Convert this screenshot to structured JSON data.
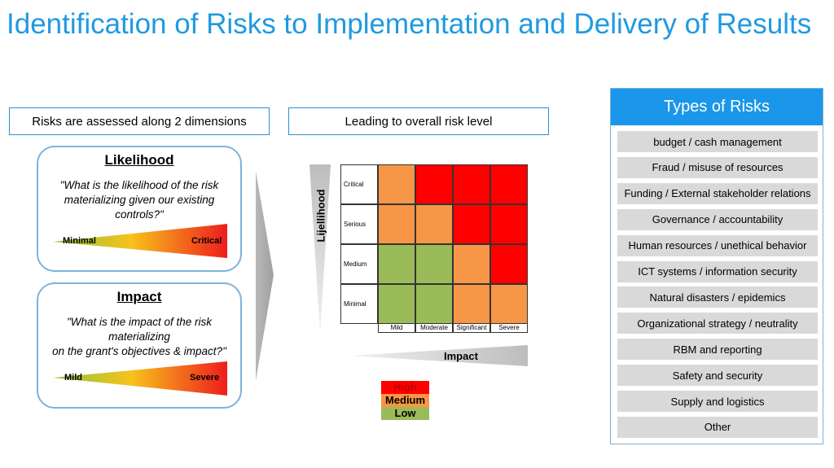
{
  "title": "Identification of Risks to Implementation and Delivery of Results",
  "headers": {
    "left": "Risks are assessed along 2 dimensions",
    "middle": "Leading to overall risk level"
  },
  "likelihood_card": {
    "title": "Likelihood",
    "question_lines": [
      "\"What is the likelihood of the risk",
      "materializing given our existing",
      "controls?\""
    ],
    "low_label": "Minimal",
    "high_label": "Critical"
  },
  "impact_card": {
    "title": "Impact",
    "question_lines": [
      "\"What is the impact of the risk",
      "materializing",
      "on the grant's objectives & impact?\""
    ],
    "low_label": "Mild",
    "high_label": "Severe"
  },
  "matrix": {
    "likelihood_label": "Lijellihood",
    "impact_label": "Impact",
    "rows": [
      "Critical",
      "Serious",
      "Medium",
      "Minimal"
    ],
    "columns": [
      "Mild",
      "Moderate",
      "Significant",
      "Severe"
    ],
    "levels": [
      [
        "medium",
        "high",
        "high",
        "high"
      ],
      [
        "medium",
        "medium",
        "high",
        "high"
      ],
      [
        "low",
        "low",
        "medium",
        "high"
      ],
      [
        "low",
        "low",
        "medium",
        "medium"
      ]
    ]
  },
  "legend": [
    {
      "key": "high",
      "label": "High",
      "color": "#ff0000"
    },
    {
      "key": "medium",
      "label": "Medium",
      "color": "#f79646"
    },
    {
      "key": "low",
      "label": "Low",
      "color": "#9bbb59"
    }
  ],
  "types_panel": {
    "title": "Types of Risks",
    "items": [
      "budget / cash management",
      "Fraud / misuse of resources",
      "Funding / External stakeholder relations",
      "Governance / accountability",
      "Human resources / unethical behavior",
      "ICT systems / information security",
      "Natural disasters / epidemics",
      "Organizational strategy / neutrality",
      "RBM and reporting",
      "Safety and security",
      "Supply and logistics",
      "Other"
    ]
  },
  "colors": {
    "title": "#1f9ae0",
    "panel_header": "#1a96ea",
    "border": "#7fb2d9",
    "item_bg": "#d9d9d9"
  }
}
